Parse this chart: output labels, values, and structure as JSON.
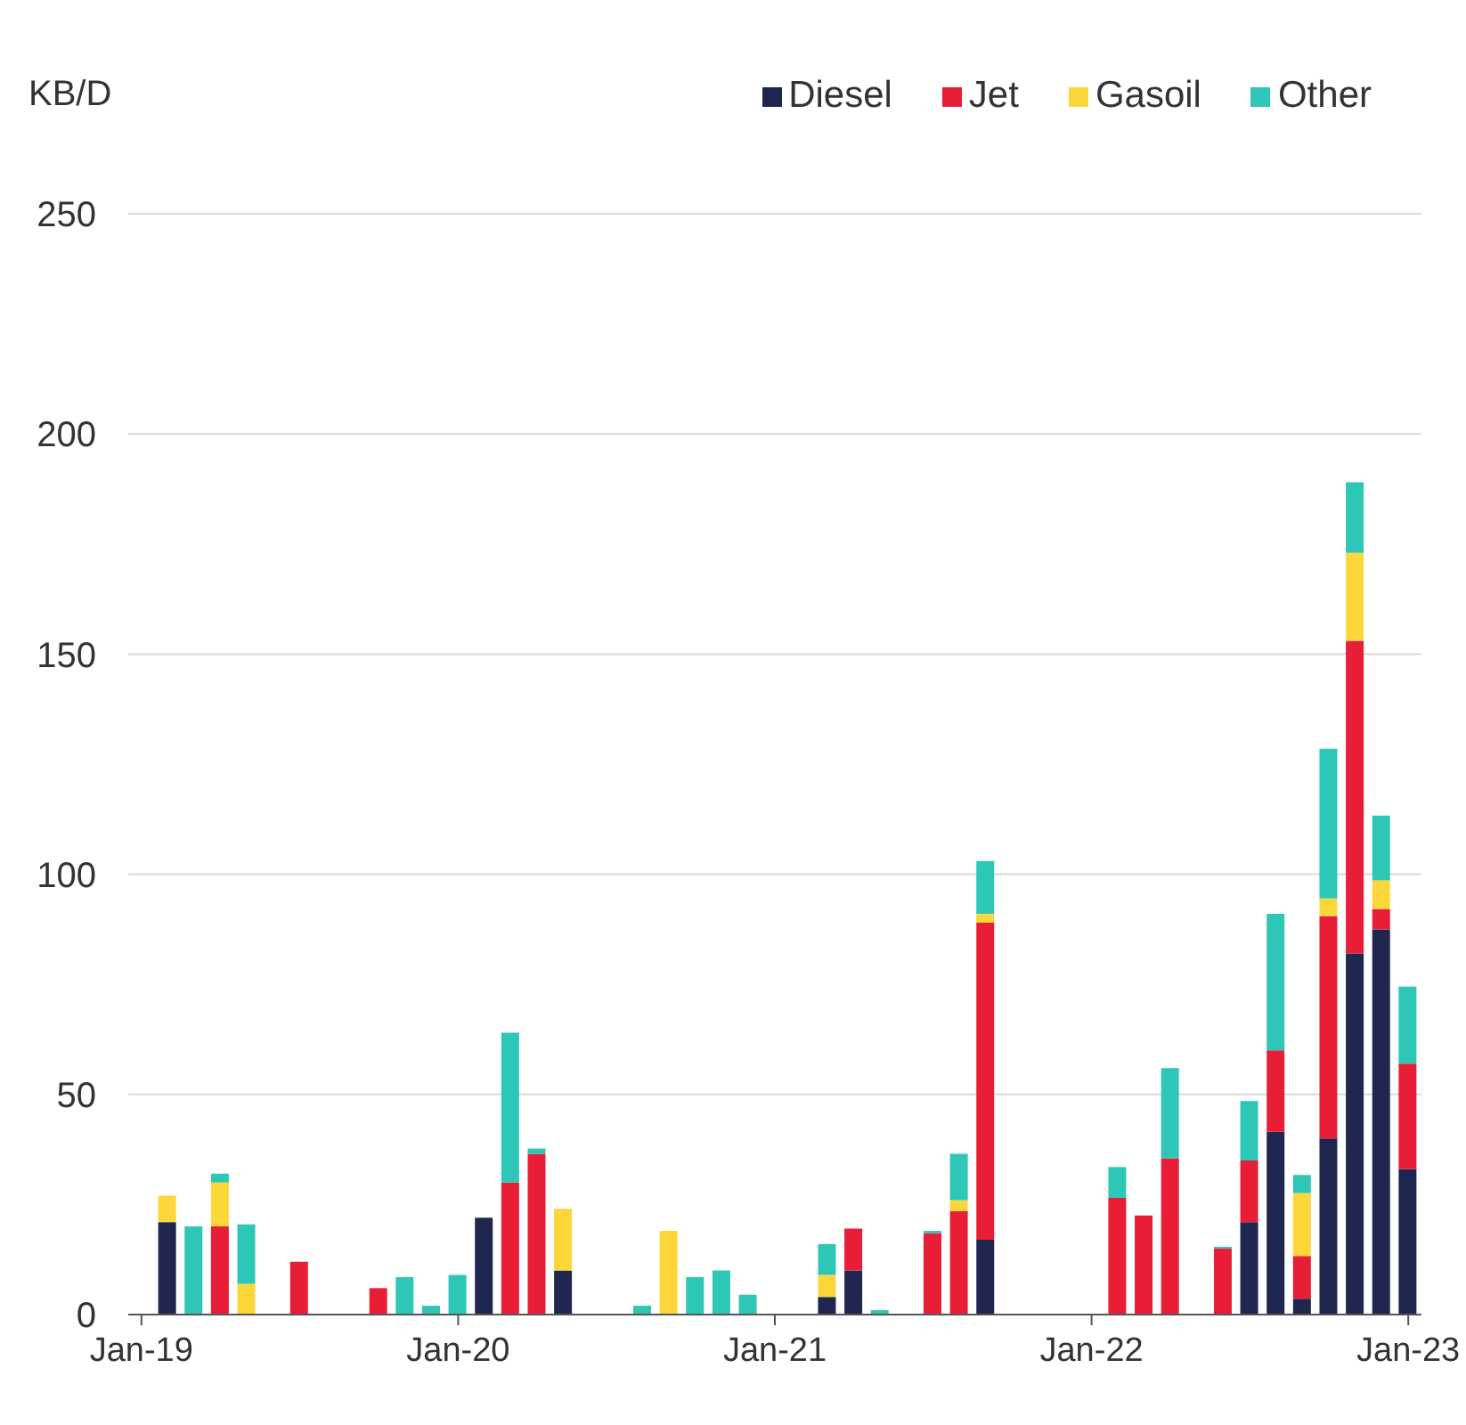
{
  "chart_data": {
    "type": "bar",
    "ylabel": "KB/D",
    "stacked": true,
    "legend": "top right",
    "grid": "y",
    "categories": [
      "Jan-19",
      null,
      null,
      null,
      null,
      null,
      null,
      null,
      null,
      null,
      null,
      null,
      "Jan-20",
      null,
      null,
      null,
      null,
      null,
      null,
      null,
      null,
      null,
      null,
      null,
      "Jan-21",
      null,
      null,
      null,
      null,
      null,
      null,
      null,
      null,
      null,
      null,
      null,
      "Jan-22",
      null,
      null,
      null,
      null,
      null,
      null,
      null,
      null,
      null,
      null,
      null,
      "Jan-23"
    ],
    "ylim": [
      0,
      250
    ],
    "yticks": [
      0,
      50,
      100,
      150,
      200,
      250
    ],
    "series": [
      {
        "name": "Diesel",
        "color": "#1f2650",
        "values": [
          null,
          21,
          null,
          null,
          null,
          null,
          null,
          null,
          null,
          null,
          null,
          null,
          null,
          22,
          null,
          null,
          10,
          null,
          null,
          null,
          null,
          null,
          null,
          null,
          null,
          null,
          4,
          10,
          null,
          null,
          null,
          null,
          17,
          null,
          null,
          null,
          null,
          null,
          null,
          null,
          null,
          null,
          21,
          41.5,
          3.6,
          40,
          82,
          87.5,
          33
        ]
      },
      {
        "name": "Jet",
        "color": "#e81e36",
        "values": [
          null,
          null,
          null,
          20,
          null,
          null,
          12,
          null,
          null,
          6,
          null,
          null,
          null,
          null,
          30,
          36.5,
          null,
          null,
          null,
          null,
          null,
          null,
          null,
          null,
          null,
          null,
          null,
          9.5,
          null,
          null,
          18.5,
          23.5,
          72,
          null,
          null,
          null,
          null,
          26.5,
          22.5,
          35.5,
          null,
          15,
          14,
          18.5,
          9.7,
          50.5,
          71,
          4.6,
          24
        ]
      },
      {
        "name": "Gasoil",
        "color": "#fdd73a",
        "values": [
          null,
          6,
          null,
          10,
          7,
          null,
          null,
          null,
          null,
          null,
          null,
          null,
          null,
          null,
          null,
          null,
          14,
          null,
          null,
          null,
          19,
          null,
          null,
          null,
          null,
          null,
          5,
          null,
          null,
          null,
          null,
          2.5,
          2,
          null,
          null,
          null,
          null,
          null,
          null,
          null,
          null,
          null,
          null,
          null,
          14.3,
          4,
          20,
          6.5,
          null
        ]
      },
      {
        "name": "Other",
        "color": "#2ec6b6",
        "values": [
          null,
          null,
          20,
          2,
          13.5,
          null,
          null,
          null,
          null,
          null,
          8.5,
          2,
          9,
          null,
          34,
          1.2,
          null,
          null,
          null,
          2,
          null,
          8.5,
          10,
          4.5,
          null,
          null,
          7,
          null,
          1,
          null,
          0.5,
          10.5,
          12,
          null,
          null,
          null,
          null,
          7,
          null,
          20.5,
          null,
          0.4,
          13.5,
          31,
          4.1,
          34,
          16,
          14.7,
          17.5
        ]
      }
    ]
  }
}
